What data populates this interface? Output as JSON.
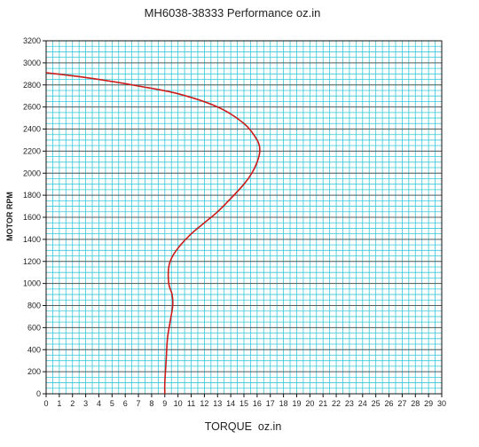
{
  "chart_data": {
    "type": "line",
    "title": "MH6038-38333 Performance oz.in",
    "xlabel": "TORQUE  oz.in",
    "ylabel": "MOTOR RPM",
    "xlim": [
      0,
      30
    ],
    "ylim": [
      0,
      3200
    ],
    "x_ticks": [
      "0",
      "1",
      "2",
      "3",
      "4",
      "5",
      "6",
      "7",
      "8",
      "9",
      "10",
      "11",
      "12",
      "13",
      "14",
      "15",
      "16",
      "17",
      "18",
      "19",
      "20",
      "21",
      "22",
      "23",
      "24",
      "25",
      "26",
      "27",
      "28",
      "29",
      "30"
    ],
    "y_ticks": [
      "0",
      "200",
      "400",
      "600",
      "800",
      "1000",
      "1200",
      "1400",
      "1600",
      "1800",
      "2000",
      "2200",
      "2400",
      "2600",
      "2800",
      "3000",
      "3200"
    ],
    "grid": true,
    "colors": {
      "line": "#cc1b1b",
      "minor_grid": "#35c8d8",
      "major_grid": "#5a5a5a",
      "axis": "#111111"
    },
    "series": [
      {
        "points": [
          [
            9.0,
            0
          ],
          [
            9.0,
            100
          ],
          [
            9.1,
            300
          ],
          [
            9.2,
            500
          ],
          [
            9.4,
            650
          ],
          [
            9.6,
            800
          ],
          [
            9.55,
            900
          ],
          [
            9.3,
            1000
          ],
          [
            9.3,
            1150
          ],
          [
            9.6,
            1250
          ],
          [
            10.2,
            1350
          ],
          [
            11.0,
            1450
          ],
          [
            12.0,
            1550
          ],
          [
            13.0,
            1650
          ],
          [
            14.0,
            1770
          ],
          [
            15.0,
            1900
          ],
          [
            15.6,
            2000
          ],
          [
            16.0,
            2100
          ],
          [
            16.2,
            2200
          ],
          [
            16.0,
            2300
          ],
          [
            15.0,
            2450
          ],
          [
            13.0,
            2600
          ],
          [
            10.0,
            2720
          ],
          [
            7.0,
            2790
          ],
          [
            4.0,
            2850
          ],
          [
            1.5,
            2890
          ],
          [
            0.0,
            2910
          ]
        ]
      }
    ]
  }
}
